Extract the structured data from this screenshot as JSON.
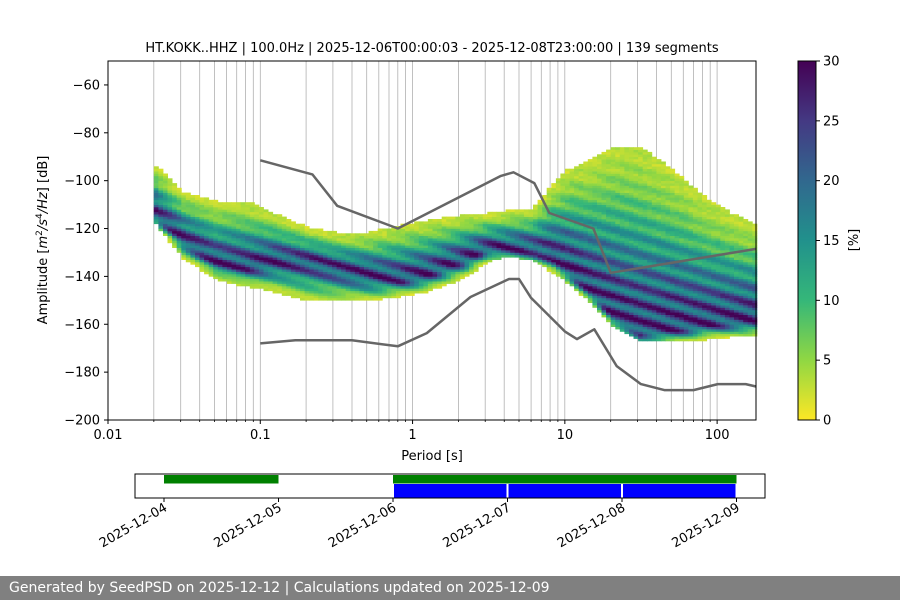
{
  "chart_data": {
    "type": "heatmap",
    "title": "HT.KOKK..HHZ | 100.0Hz | 2025-12-06T00:00:03 - 2025-12-08T23:00:00 | 139 segments",
    "xlabel": "Period [s]",
    "ylabel_parts": [
      "Amplitude [",
      "m",
      "2",
      "/",
      "s",
      "4",
      "/",
      "Hz",
      "] [dB]"
    ],
    "x_scale": "log",
    "xlim": [
      0.01,
      180
    ],
    "ylim": [
      -200,
      -50
    ],
    "x_ticks": [
      {
        "value": 0.01,
        "label": "0.01"
      },
      {
        "value": 0.1,
        "label": "0.1"
      },
      {
        "value": 1,
        "label": "1"
      },
      {
        "value": 10,
        "label": "10"
      },
      {
        "value": 100,
        "label": "100"
      }
    ],
    "y_ticks": [
      -60,
      -80,
      -100,
      -120,
      -140,
      -160,
      -180,
      -200
    ],
    "y_tick_labels": [
      "−60",
      "−80",
      "−100",
      "−120",
      "−140",
      "−160",
      "−180",
      "−200"
    ],
    "grid": "x-only, log minor lines",
    "colorbar": {
      "label": "[%]",
      "min": 0,
      "max": 30,
      "ticks": [
        0,
        5,
        10,
        15,
        20,
        25,
        30
      ],
      "colormap": [
        "#fde725",
        "#90d743",
        "#35b779",
        "#21918c",
        "#31688e",
        "#443983",
        "#440154"
      ]
    },
    "noise_models": {
      "color": "#666666",
      "high": [
        [
          0.1,
          -91.5
        ],
        [
          0.22,
          -97.4
        ],
        [
          0.32,
          -110.5
        ],
        [
          0.8,
          -120.0
        ],
        [
          3.8,
          -98.0
        ],
        [
          4.6,
          -96.5
        ],
        [
          6.3,
          -101.0
        ],
        [
          7.9,
          -113.5
        ],
        [
          15.4,
          -120.0
        ],
        [
          20,
          -138.5
        ],
        [
          180,
          -128.5
        ]
      ],
      "low": [
        [
          0.1,
          -168.0
        ],
        [
          0.17,
          -166.7
        ],
        [
          0.4,
          -166.7
        ],
        [
          0.8,
          -169.2
        ],
        [
          1.24,
          -163.7
        ],
        [
          2.4,
          -148.6
        ],
        [
          4.3,
          -141.1
        ],
        [
          5.0,
          -141.1
        ],
        [
          6.0,
          -149.0
        ],
        [
          10,
          -163.0
        ],
        [
          12,
          -166.2
        ],
        [
          15.6,
          -162.1
        ],
        [
          21.9,
          -177.5
        ],
        [
          31.6,
          -185.0
        ],
        [
          45,
          -187.5
        ],
        [
          70,
          -187.5
        ],
        [
          101,
          -185.0
        ],
        [
          154,
          -185.0
        ],
        [
          180,
          -186.0
        ]
      ]
    },
    "psd_density_summary": {
      "period_s": [
        0.02,
        0.03,
        0.05,
        0.08,
        0.12,
        0.2,
        0.3,
        0.5,
        0.8,
        1.2,
        2,
        3,
        4,
        6,
        8,
        10,
        15,
        20,
        30,
        50,
        80,
        120,
        180
      ],
      "mode_db": [
        -115,
        -125,
        -135,
        -137,
        -134,
        -134,
        -137,
        -140,
        -142,
        -140,
        -134,
        -129,
        -129,
        -130,
        -133,
        -138,
        -148,
        -157,
        -164,
        -163,
        -161,
        -160,
        -159
      ],
      "min_db": [
        -118,
        -132,
        -141,
        -144,
        -146,
        -150,
        -150,
        -150,
        -148,
        -146,
        -141,
        -134,
        -131,
        -133,
        -138,
        -142,
        -152,
        -160,
        -167,
        -167,
        -166,
        -165,
        -165
      ],
      "max_db": [
        -95,
        -106,
        -110,
        -110,
        -115,
        -121,
        -123,
        -123,
        -120,
        -118,
        -116,
        -115,
        -114,
        -113,
        -103,
        -97,
        -92,
        -87,
        -87,
        -97,
        -108,
        -115,
        -120
      ]
    },
    "availability": {
      "date_ticks": [
        "2025-12-04",
        "2025-12-05",
        "2025-12-06",
        "2025-12-07",
        "2025-12-08",
        "2025-12-09"
      ],
      "data_spans_color": "#008000",
      "processed_spans_color": "#0000ff",
      "data_spans": [
        [
          "2025-12-04T00:00",
          "2025-12-05T00:00"
        ],
        [
          "2025-12-06T00:00",
          "2025-12-09T00:00"
        ]
      ],
      "processed_spans": [
        [
          "2025-12-06T00:00",
          "2025-12-07T00:00"
        ],
        [
          "2025-12-07T00:00",
          "2025-12-08T00:00"
        ],
        [
          "2025-12-08T00:00",
          "2025-12-09T00:00"
        ]
      ]
    }
  },
  "footer": {
    "text": "Generated by SeedPSD on 2025-12-12 | Calculations updated on 2025-12-09"
  }
}
